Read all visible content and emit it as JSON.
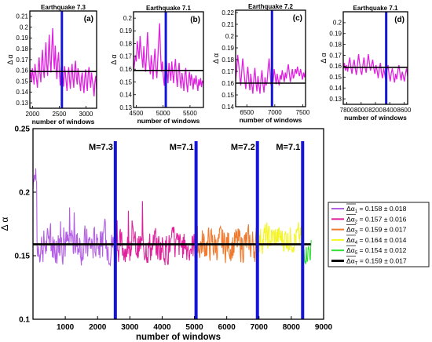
{
  "chart_data": [
    {
      "type": "line",
      "panel": "(a)",
      "title": "Earthquake 7.3",
      "xlabel": "number of windows",
      "ylabel": "Δ α",
      "xlim": [
        1950,
        3200
      ],
      "ylim": [
        0.125,
        0.215
      ],
      "xticks": [
        2000,
        2500,
        3000
      ],
      "yticks": [
        0.13,
        0.14,
        0.15,
        0.16,
        0.17,
        0.18,
        0.19,
        0.2,
        0.21
      ],
      "series_color": "#e020e0",
      "mean": 0.159,
      "event_x": 2550,
      "y_shape": [
        0.152,
        0.158,
        0.149,
        0.162,
        0.155,
        0.147,
        0.166,
        0.158,
        0.151,
        0.144,
        0.163,
        0.172,
        0.157,
        0.149,
        0.168,
        0.179,
        0.161,
        0.153,
        0.171,
        0.186,
        0.166,
        0.155,
        0.176,
        0.193,
        0.169,
        0.158,
        0.181,
        0.199,
        0.174,
        0.161,
        0.183,
        0.165,
        0.152,
        0.168,
        0.177,
        0.158,
        0.146,
        0.162,
        0.171,
        0.154,
        0.145,
        0.164,
        0.158,
        0.149,
        0.141,
        0.156,
        0.163,
        0.151,
        0.143,
        0.158,
        0.166,
        0.152,
        0.144,
        0.161,
        0.169,
        0.154,
        0.147,
        0.162,
        0.156,
        0.149,
        0.141,
        0.153,
        0.158,
        0.147,
        0.139,
        0.152,
        0.161,
        0.148,
        0.141,
        0.156,
        0.163,
        0.151,
        0.144,
        0.158,
        0.151,
        0.145,
        0.136,
        0.149,
        0.155,
        0.143
      ]
    },
    {
      "type": "line",
      "panel": "(b)",
      "title": "Earthquake 7.1",
      "xlabel": "number of windows",
      "ylabel": "Δ α",
      "xlim": [
        4450,
        5750
      ],
      "ylim": [
        0.13,
        0.205
      ],
      "xticks": [
        4500,
        5000,
        5500
      ],
      "yticks": [
        0.13,
        0.14,
        0.15,
        0.16,
        0.17,
        0.18,
        0.19,
        0.2
      ],
      "series_color": "#e020e0",
      "mean": 0.159,
      "event_x": 5050,
      "y_shape": [
        0.158,
        0.164,
        0.171,
        0.166,
        0.182,
        0.175,
        0.168,
        0.186,
        0.176,
        0.169,
        0.161,
        0.178,
        0.166,
        0.158,
        0.172,
        0.189,
        0.174,
        0.163,
        0.156,
        0.171,
        0.163,
        0.152,
        0.166,
        0.176,
        0.161,
        0.153,
        0.168,
        0.182,
        0.196,
        0.172,
        0.158,
        0.166,
        0.154,
        0.147,
        0.163,
        0.171,
        0.158,
        0.149,
        0.165,
        0.158,
        0.151,
        0.166,
        0.157,
        0.149,
        0.161,
        0.168,
        0.154,
        0.146,
        0.159,
        0.165,
        0.152,
        0.145,
        0.157,
        0.151,
        0.143,
        0.155,
        0.161,
        0.149,
        0.142,
        0.153,
        0.158,
        0.147,
        0.156,
        0.151,
        0.144,
        0.153,
        0.148,
        0.155,
        0.149,
        0.143,
        0.152,
        0.147,
        0.153,
        0.146,
        0.151,
        0.149
      ]
    },
    {
      "type": "line",
      "panel": "(c)",
      "title": "Earthquake 7.2",
      "xlabel": "number of windows",
      "ylabel": "Δ α",
      "xlim": [
        6300,
        7550
      ],
      "ylim": [
        0.14,
        0.222
      ],
      "xticks": [
        6500,
        7000,
        7500
      ],
      "yticks": [
        0.14,
        0.15,
        0.16,
        0.17,
        0.18,
        0.19,
        0.2,
        0.21,
        0.22
      ],
      "series_color": "#e020e0",
      "mean": 0.16,
      "event_x": 6950,
      "y_shape": [
        0.162,
        0.171,
        0.184,
        0.176,
        0.167,
        0.158,
        0.169,
        0.181,
        0.172,
        0.163,
        0.155,
        0.166,
        0.174,
        0.162,
        0.154,
        0.168,
        0.159,
        0.151,
        0.164,
        0.173,
        0.161,
        0.153,
        0.166,
        0.158,
        0.151,
        0.163,
        0.171,
        0.159,
        0.152,
        0.165,
        0.158,
        0.161,
        0.172,
        0.181,
        0.169,
        0.158,
        0.166,
        0.161,
        0.172,
        0.166,
        0.159,
        0.168,
        0.162,
        0.158,
        0.167,
        0.163,
        0.171,
        0.166,
        0.161,
        0.169,
        0.164,
        0.171,
        0.176,
        0.168,
        0.161,
        0.166,
        0.172,
        0.164,
        0.167,
        0.172,
        0.168,
        0.174,
        0.169,
        0.166,
        0.172,
        0.168,
        0.163,
        0.169,
        0.165,
        0.171
      ]
    },
    {
      "type": "line",
      "panel": "(d)",
      "title": "Earthquake 7.1",
      "xlabel": "number of windows",
      "ylabel": "Δ α",
      "xlim": [
        7750,
        8650
      ],
      "ylim": [
        0.125,
        0.21
      ],
      "xticks": [
        7800,
        8000,
        8200,
        8400,
        8600
      ],
      "yticks": [
        0.13,
        0.14,
        0.15,
        0.16,
        0.17,
        0.18,
        0.19,
        0.2
      ],
      "series_color": "#e020e0",
      "mean": 0.159,
      "event_x": 8350,
      "y_shape": [
        0.158,
        0.163,
        0.156,
        0.161,
        0.155,
        0.162,
        0.168,
        0.159,
        0.153,
        0.161,
        0.166,
        0.158,
        0.152,
        0.161,
        0.171,
        0.163,
        0.156,
        0.152,
        0.161,
        0.168,
        0.159,
        0.154,
        0.163,
        0.171,
        0.162,
        0.156,
        0.161,
        0.166,
        0.158,
        0.153,
        0.161,
        0.156,
        0.149,
        0.158,
        0.163,
        0.154,
        0.149,
        0.158,
        0.153,
        0.147,
        0.156,
        0.161,
        0.152,
        0.146,
        0.154,
        0.158,
        0.151,
        0.145,
        0.153,
        0.148,
        0.156,
        0.161,
        0.153,
        0.147,
        0.155,
        0.151,
        0.146,
        0.153,
        0.158,
        0.151
      ]
    },
    {
      "type": "line",
      "panel": "main",
      "title": "",
      "xlabel": "number of windows",
      "ylabel": "Δ α",
      "xlim": [
        0,
        9000
      ],
      "ylim": [
        0.1,
        0.25
      ],
      "xticks": [
        1000,
        2000,
        3000,
        4000,
        5000,
        6000,
        7000,
        8000,
        9000
      ],
      "yticks": [
        0.1,
        0.15,
        0.2,
        0.25
      ],
      "mean_line": 0.159,
      "events": [
        {
          "x": 2550,
          "label": "M=7.3"
        },
        {
          "x": 5050,
          "label": "M=7.1"
        },
        {
          "x": 6950,
          "label": "M=7.2"
        },
        {
          "x": 8350,
          "label": "M=7.1"
        }
      ],
      "series": [
        {
          "sub": "1",
          "mean": 0.158,
          "std": 0.018,
          "color": "#b45ee6",
          "x_range": [
            0,
            2550
          ]
        },
        {
          "sub": "2",
          "mean": 0.157,
          "std": 0.016,
          "color": "#e0219c",
          "x_range": [
            2550,
            5050
          ]
        },
        {
          "sub": "3",
          "mean": 0.159,
          "std": 0.017,
          "color": "#ef7b30",
          "x_range": [
            5050,
            6950
          ]
        },
        {
          "sub": "4",
          "mean": 0.164,
          "std": 0.014,
          "color": "#f5f525",
          "x_range": [
            6950,
            8350
          ]
        },
        {
          "sub": "5",
          "mean": 0.154,
          "std": 0.012,
          "color": "#30e030",
          "x_range": [
            8350,
            8620
          ]
        }
      ],
      "total": {
        "sub": "T",
        "mean": 0.159,
        "std": 0.017,
        "color": "#000000"
      },
      "legend_position": "right"
    }
  ]
}
